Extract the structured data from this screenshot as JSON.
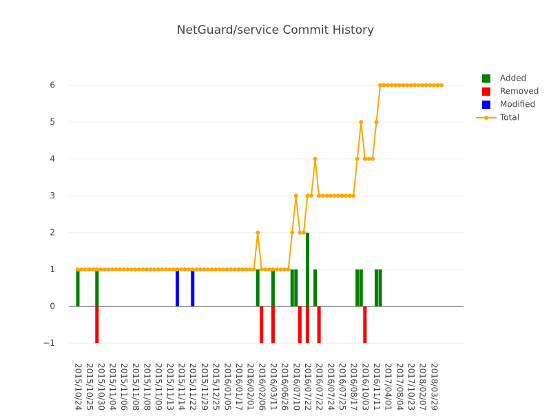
{
  "chart_data": {
    "type": "bar",
    "title": "NetGuard/service Commit History",
    "categories": [
      "2015/10/24",
      null,
      null,
      "2015/10/25",
      null,
      null,
      "2015/10/30",
      null,
      null,
      "2015/11/04",
      null,
      null,
      "2015/11/06",
      null,
      null,
      "2015/11/08",
      null,
      null,
      "2015/11/08",
      null,
      null,
      "2015/11/09",
      null,
      null,
      "2015/11/13",
      null,
      null,
      "2015/11/14",
      null,
      null,
      "2015/11/22",
      null,
      null,
      "2015/11/29",
      null,
      null,
      "2015/12/25",
      null,
      null,
      "2016/01/05",
      null,
      null,
      "2016/01/17",
      null,
      null,
      "2016/02/01",
      null,
      null,
      "2016/02/06",
      null,
      null,
      "2016/03/11",
      null,
      null,
      "2016/06/26",
      null,
      null,
      "2016/07/10",
      null,
      null,
      "2016/07/22",
      null,
      null,
      "2016/07/22",
      null,
      null,
      "2016/07/24",
      null,
      null,
      "2016/07/25",
      null,
      null,
      "2016/08/17",
      null,
      null,
      "2016/10/03",
      null,
      null,
      "2016/11/11",
      null,
      null,
      "2017/04/01",
      null,
      null,
      "2017/08/04",
      null,
      null,
      "2017/10/23",
      null,
      null,
      "2018/02/07",
      null,
      null,
      "2018/03/29",
      null,
      null
    ],
    "series": [
      {
        "name": "Added",
        "type": "bar",
        "color": "#008000",
        "values": [
          1,
          0,
          0,
          0,
          0,
          1,
          0,
          0,
          0,
          0,
          0,
          0,
          0,
          0,
          0,
          0,
          0,
          0,
          0,
          0,
          0,
          0,
          0,
          0,
          0,
          0,
          0,
          0,
          0,
          0,
          0,
          0,
          0,
          0,
          0,
          0,
          0,
          0,
          0,
          0,
          0,
          0,
          0,
          0,
          0,
          0,
          0,
          1,
          0,
          0,
          0,
          1,
          0,
          0,
          0,
          0,
          1,
          1,
          0,
          0,
          2,
          0,
          1,
          0,
          0,
          0,
          0,
          0,
          0,
          0,
          0,
          0,
          0,
          1,
          1,
          0,
          0,
          0,
          1,
          1,
          0,
          0,
          0,
          0,
          0,
          0,
          0,
          0,
          0,
          0,
          0,
          0,
          0,
          0,
          0,
          0
        ]
      },
      {
        "name": "Removed",
        "type": "bar",
        "color": "#ff0000",
        "values": [
          0,
          0,
          0,
          0,
          0,
          -1,
          0,
          0,
          0,
          0,
          0,
          0,
          0,
          0,
          0,
          0,
          0,
          0,
          0,
          0,
          0,
          0,
          0,
          0,
          0,
          0,
          0,
          0,
          0,
          0,
          0,
          0,
          0,
          0,
          0,
          0,
          0,
          0,
          0,
          0,
          0,
          0,
          0,
          0,
          0,
          0,
          0,
          0,
          -1,
          0,
          0,
          -1,
          0,
          0,
          0,
          0,
          0,
          0,
          -1,
          0,
          -1,
          0,
          0,
          -1,
          0,
          0,
          0,
          0,
          0,
          0,
          0,
          0,
          0,
          0,
          0,
          -1,
          0,
          0,
          0,
          0,
          0,
          0,
          0,
          0,
          0,
          0,
          0,
          0,
          0,
          0,
          0,
          0,
          0,
          0,
          0,
          0
        ]
      },
      {
        "name": "Modified",
        "type": "bar",
        "color": "#0000ff",
        "values": [
          0,
          0,
          0,
          0,
          0,
          0,
          0,
          0,
          0,
          0,
          0,
          0,
          0,
          0,
          0,
          0,
          0,
          0,
          0,
          0,
          0,
          0,
          0,
          0,
          0,
          0,
          1,
          0,
          0,
          0,
          1,
          0,
          0,
          0,
          0,
          0,
          0,
          0,
          0,
          0,
          0,
          0,
          0,
          0,
          0,
          0,
          0,
          0,
          0,
          0,
          0,
          0,
          0,
          0,
          0,
          0,
          0,
          0,
          0,
          0,
          0,
          0,
          0,
          0,
          0,
          0,
          0,
          0,
          0,
          0,
          0,
          0,
          0,
          0,
          0,
          0,
          0,
          0,
          0,
          0,
          0,
          0,
          0,
          0,
          0,
          0,
          0,
          0,
          0,
          0,
          0,
          0,
          0,
          0,
          0,
          0
        ]
      },
      {
        "name": "Total",
        "type": "line",
        "color": "#ffa500",
        "values": [
          1,
          1,
          1,
          1,
          1,
          1,
          1,
          1,
          1,
          1,
          1,
          1,
          1,
          1,
          1,
          1,
          1,
          1,
          1,
          1,
          1,
          1,
          1,
          1,
          1,
          1,
          1,
          1,
          1,
          1,
          1,
          1,
          1,
          1,
          1,
          1,
          1,
          1,
          1,
          1,
          1,
          1,
          1,
          1,
          1,
          1,
          1,
          2,
          1,
          1,
          1,
          1,
          1,
          1,
          1,
          1,
          2,
          3,
          2,
          2,
          3,
          3,
          4,
          3,
          3,
          3,
          3,
          3,
          3,
          3,
          3,
          3,
          3,
          4,
          5,
          4,
          4,
          4,
          5,
          6,
          6,
          6,
          6,
          6,
          6,
          6,
          6,
          6,
          6,
          6,
          6,
          6,
          6,
          6,
          6,
          6
        ]
      }
    ],
    "ylim": [
      -1.2,
      6.8
    ],
    "yticks": [
      {
        "value": -1,
        "label": "−1"
      },
      0,
      1,
      2,
      3,
      4,
      5,
      6
    ],
    "grid": true,
    "legend": "right"
  }
}
